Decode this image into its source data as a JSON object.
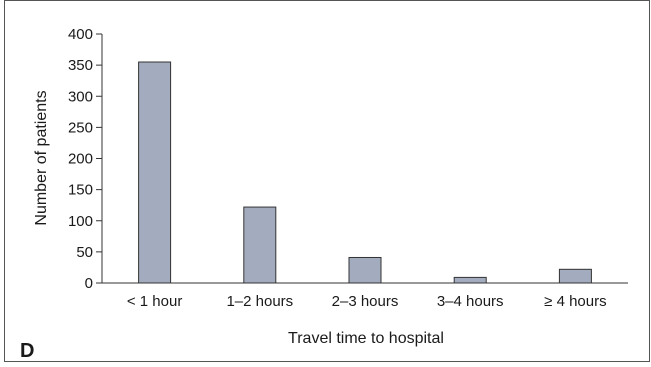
{
  "panel_label": "D",
  "colors": {
    "bar_fill": "#a3acbf",
    "bar_stroke": "#333333",
    "axis": "#333333",
    "frame": "#555555"
  },
  "chart_data": {
    "type": "bar",
    "categories": [
      "< 1 hour",
      "1–2 hours",
      "2–3 hours",
      "3–4 hours",
      "≥ 4 hours"
    ],
    "values": [
      355,
      122,
      41,
      9,
      22
    ],
    "title": "",
    "xlabel": "Travel time to hospital",
    "ylabel": "Number of patients",
    "ylim": [
      0,
      400
    ],
    "yticks": [
      0,
      50,
      100,
      150,
      200,
      250,
      300,
      350,
      400
    ],
    "grid": false,
    "legend": false
  }
}
